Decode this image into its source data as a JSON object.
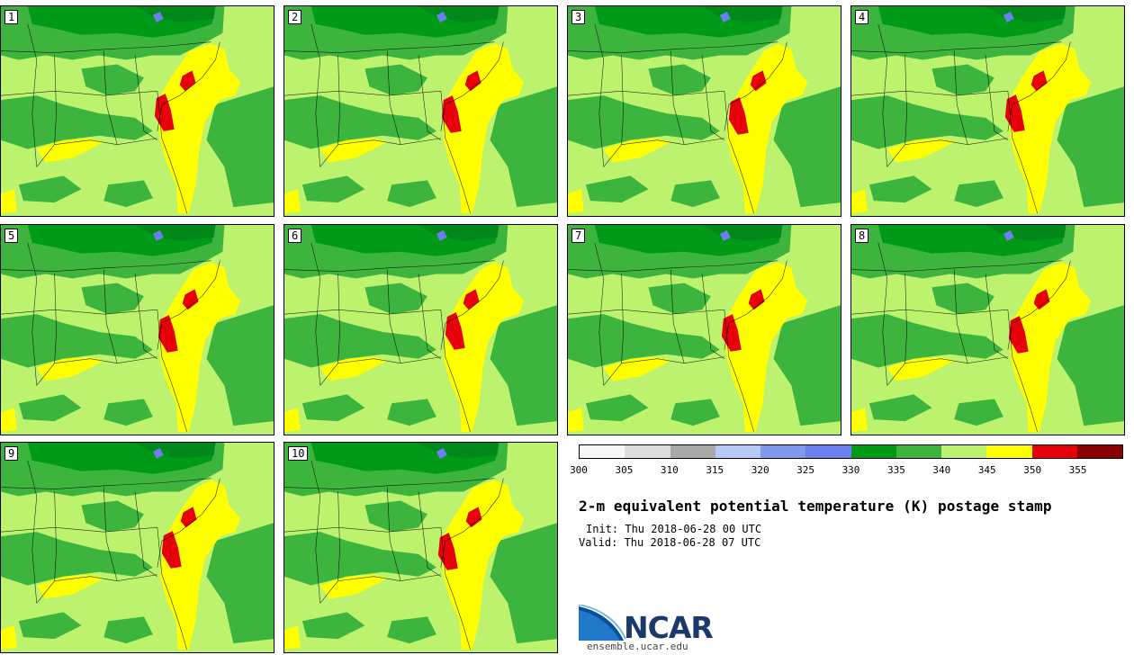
{
  "title": "2-m equivalent potential temperature (K) postage stamp",
  "init_label": "Init: Thu 2018-06-28 00 UTC",
  "valid_label": "Valid: Thu 2018-06-28 07 UTC",
  "members": [
    "1",
    "2",
    "3",
    "4",
    "5",
    "6",
    "7",
    "8",
    "9",
    "10"
  ],
  "colorbar": {
    "ticks": [
      "300",
      "305",
      "310",
      "315",
      "320",
      "325",
      "330",
      "335",
      "340",
      "345",
      "350",
      "355"
    ],
    "colors": [
      "#f7f7f7",
      "#dcdcdc",
      "#a9a9a9",
      "#b7c9f5",
      "#8097ee",
      "#6b7ff0",
      "#009a19",
      "#3db43d",
      "#bdf26e",
      "#ffff00",
      "#e6000a",
      "#8a0000"
    ]
  },
  "logo": {
    "name": "NCAR",
    "url": "ensemble.ucar.edu",
    "icon": "ncar-swoosh-icon"
  },
  "map_colors": {
    "land_base": "#bdf26e",
    "green_dark": "#009a19",
    "green_mid": "#3db43d",
    "yellow": "#ffff00",
    "red": "#e6000a",
    "blue": "#6b7ff0"
  }
}
